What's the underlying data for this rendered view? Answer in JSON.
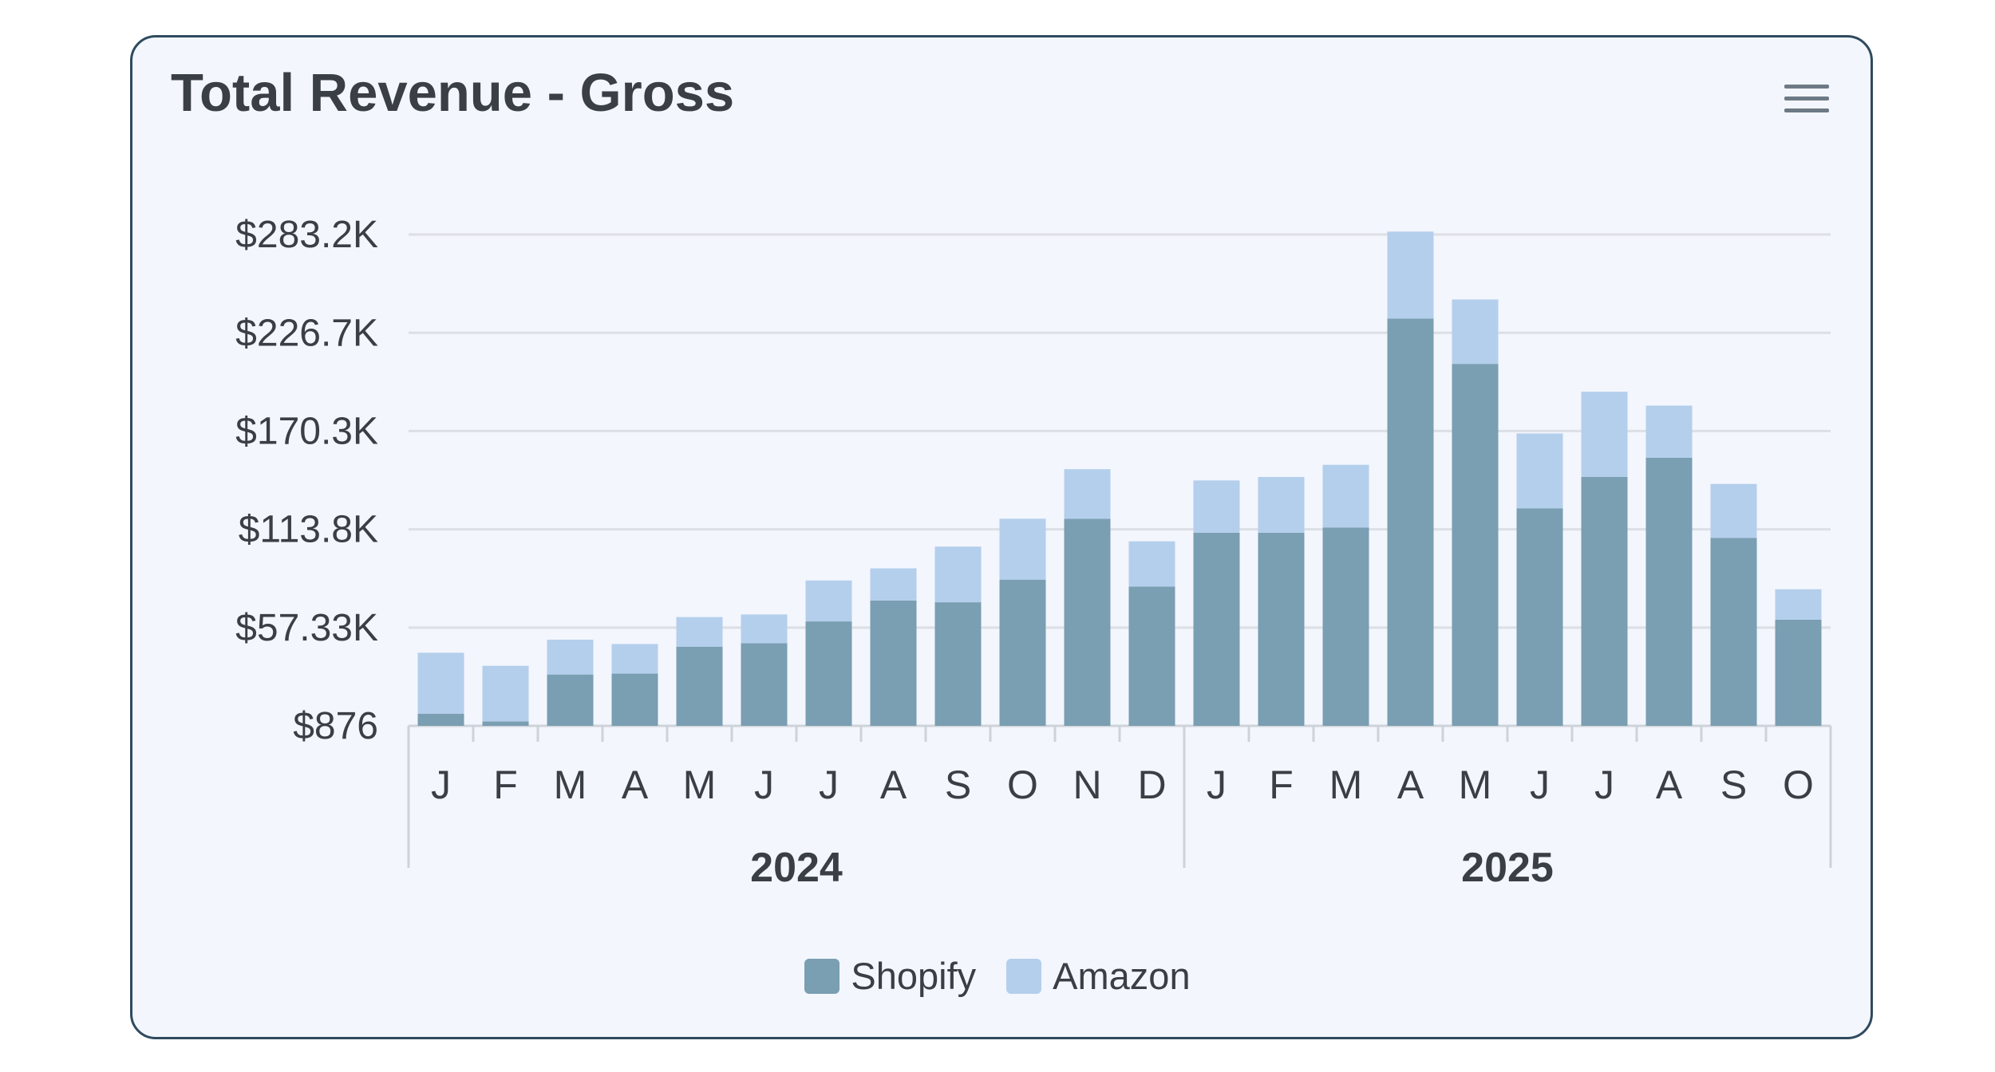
{
  "colors": {
    "shopify": "#7a9eb2",
    "amazon": "#b4cfec",
    "grid": "#dcdfe4",
    "axis": "#cdd3d9",
    "text": "#3a3f45"
  },
  "menu": {
    "icon": "hamburger-menu-icon"
  },
  "chart_data": {
    "type": "bar",
    "stacked": true,
    "title": "Total Revenue - Gross",
    "xlabel": "",
    "ylabel": "",
    "y_ticks": [
      876,
      57330,
      113800,
      170300,
      226700,
      283200
    ],
    "y_tick_labels": [
      "$876",
      "$57.33K",
      "$113.8K",
      "$170.3K",
      "$226.7K",
      "$283.2K"
    ],
    "ylim": [
      876,
      283200
    ],
    "grid": true,
    "legend_position": "bottom-center",
    "categories": [
      "J",
      "F",
      "M",
      "A",
      "M",
      "J",
      "J",
      "A",
      "S",
      "O",
      "N",
      "D",
      "J",
      "F",
      "M",
      "A",
      "M",
      "J",
      "J",
      "A",
      "S",
      "O"
    ],
    "groups": [
      {
        "label": "2024",
        "count": 12
      },
      {
        "label": "2025",
        "count": 10
      }
    ],
    "series": [
      {
        "name": "Shopify",
        "values": [
          7000,
          2500,
          29500,
          30000,
          45500,
          47500,
          60000,
          72000,
          71000,
          84000,
          119000,
          80000,
          111000,
          111000,
          114000,
          234000,
          208000,
          125000,
          143000,
          154000,
          108000,
          61000
        ]
      },
      {
        "name": "Amazon",
        "values": [
          35000,
          32000,
          20000,
          17000,
          17000,
          16500,
          23500,
          18500,
          32000,
          35000,
          28500,
          26000,
          30000,
          32000,
          36000,
          50000,
          37000,
          43000,
          49000,
          30000,
          31000,
          17500
        ]
      }
    ]
  }
}
